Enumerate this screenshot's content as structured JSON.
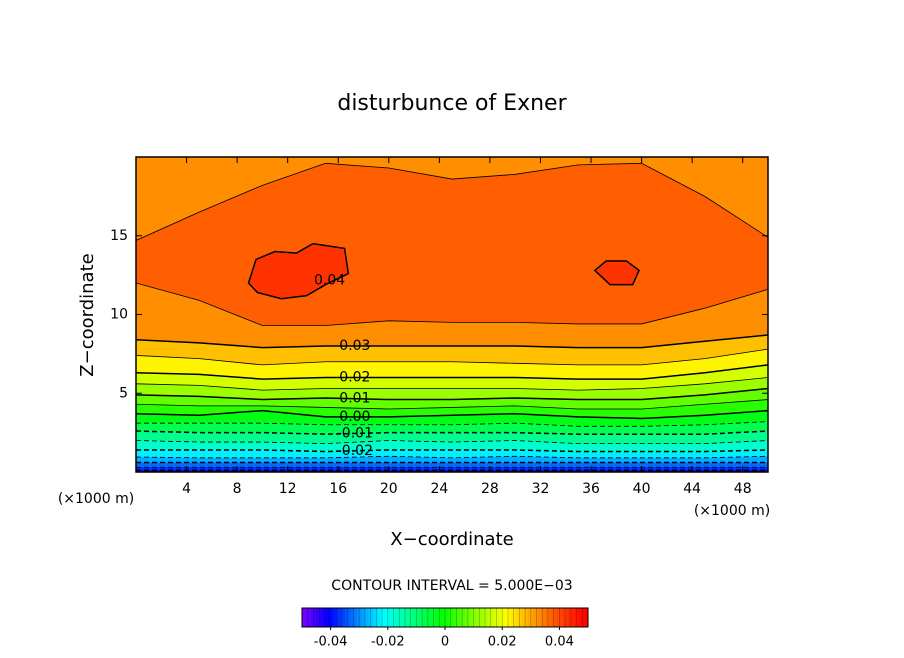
{
  "chart_data": {
    "type": "contour",
    "title": "disturbunce of Exner",
    "x_label": "X−coordinate",
    "y_label": "Z−coordinate",
    "x_unit": "(×1000 m)",
    "contour_interval_text": "CONTOUR INTERVAL = 5.000E−03",
    "xlim": [
      0,
      50
    ],
    "ylim": [
      0,
      20
    ],
    "xticks": [
      4,
      8,
      12,
      16,
      20,
      24,
      28,
      32,
      36,
      40,
      44,
      48
    ],
    "yticks": [
      5,
      10,
      15
    ],
    "clim": [
      -0.05,
      0.05
    ],
    "cticks": [
      -0.04,
      -0.02,
      0,
      0.02,
      0.04
    ],
    "x": [
      0,
      5,
      10,
      15,
      20,
      25,
      30,
      35,
      40,
      45,
      50
    ],
    "lines": [
      {
        "level": 0.035,
        "z": [
          14.7,
          16.5,
          18.2,
          19.6,
          19.3,
          18.6,
          18.9,
          19.5,
          19.6,
          17.5,
          14.9
        ]
      },
      {
        "level": 0.035,
        "z": [
          12.0,
          10.9,
          9.3,
          9.3,
          9.6,
          9.5,
          9.5,
          9.4,
          9.4,
          10.4,
          11.6
        ]
      },
      {
        "level": 0.03,
        "z": [
          8.4,
          8.2,
          7.9,
          8.0,
          8.0,
          8.0,
          8.0,
          7.9,
          7.9,
          8.3,
          8.7
        ]
      },
      {
        "level": 0.025,
        "z": [
          7.4,
          7.2,
          6.8,
          7.0,
          7.0,
          7.0,
          6.9,
          6.8,
          6.8,
          7.2,
          7.8
        ]
      },
      {
        "level": 0.02,
        "z": [
          6.3,
          6.2,
          5.9,
          6.0,
          6.0,
          6.0,
          6.0,
          5.9,
          5.9,
          6.3,
          6.8
        ]
      },
      {
        "level": 0.015,
        "z": [
          5.6,
          5.5,
          5.2,
          5.3,
          5.3,
          5.3,
          5.3,
          5.2,
          5.3,
          5.6,
          6.0
        ]
      },
      {
        "level": 0.01,
        "z": [
          4.9,
          4.8,
          4.6,
          4.7,
          4.6,
          4.6,
          4.7,
          4.6,
          4.6,
          4.9,
          5.3
        ]
      },
      {
        "level": 0.005,
        "z": [
          4.3,
          4.2,
          4.2,
          4.1,
          4.0,
          4.1,
          4.2,
          4.0,
          4.0,
          4.3,
          4.6
        ]
      },
      {
        "level": 0,
        "z": [
          3.7,
          3.6,
          3.9,
          3.5,
          3.5,
          3.6,
          3.7,
          3.5,
          3.4,
          3.6,
          3.9
        ]
      },
      {
        "level": -0.005,
        "z": [
          3.1,
          3.1,
          3.1,
          3.0,
          3.0,
          3.0,
          3.1,
          2.9,
          2.9,
          3.0,
          3.2
        ]
      },
      {
        "level": -0.01,
        "z": [
          2.6,
          2.5,
          2.5,
          2.4,
          2.5,
          2.5,
          2.5,
          2.4,
          2.4,
          2.4,
          2.6
        ]
      },
      {
        "level": -0.015,
        "z": [
          2.0,
          1.9,
          1.9,
          1.8,
          2.0,
          1.9,
          2.0,
          1.8,
          1.8,
          1.8,
          2.0
        ]
      },
      {
        "level": -0.02,
        "z": [
          1.4,
          1.4,
          1.4,
          1.3,
          1.4,
          1.4,
          1.4,
          1.3,
          1.3,
          1.3,
          1.4
        ]
      },
      {
        "level": -0.025,
        "z": [
          0.95,
          0.9,
          0.9,
          0.9,
          1.0,
          0.9,
          1.0,
          0.9,
          0.9,
          0.9,
          1.0
        ]
      },
      {
        "level": -0.03,
        "z": [
          0.6,
          0.6,
          0.6,
          0.6,
          0.6,
          0.6,
          0.6,
          0.6,
          0.6,
          0.6,
          0.6
        ]
      },
      {
        "level": -0.035,
        "z": [
          0.3,
          0.3,
          0.3,
          0.3,
          0.3,
          0.3,
          0.3,
          0.3,
          0.3,
          0.3,
          0.3
        ]
      },
      {
        "level": -0.04,
        "z": [
          0.1,
          0.1,
          0.1,
          0.1,
          0.1,
          0.1,
          0.1,
          0.1,
          0.1,
          0.1,
          0.1
        ]
      }
    ],
    "closed_contours": [
      {
        "level": 0.04,
        "x": [
          8.9,
          9.5,
          11,
          12.7,
          14,
          16.5,
          16.8,
          15,
          13.5,
          11.5,
          9.6,
          8.9
        ],
        "z": [
          12,
          13.5,
          14,
          13.9,
          14.5,
          14.2,
          12.6,
          11.9,
          11.2,
          11.0,
          11.4,
          12
        ]
      },
      {
        "level": 0.04,
        "x": [
          36.3,
          37.2,
          38.8,
          39.8,
          39.3,
          37.5,
          36.3
        ],
        "z": [
          12.8,
          13.4,
          13.4,
          12.8,
          11.9,
          11.9,
          12.8
        ]
      }
    ],
    "contour_labels": [
      0.04,
      0.03,
      0.02,
      0.01,
      {
        "value": 0,
        "label": "0.00"
      },
      -0.01,
      -0.02
    ]
  }
}
